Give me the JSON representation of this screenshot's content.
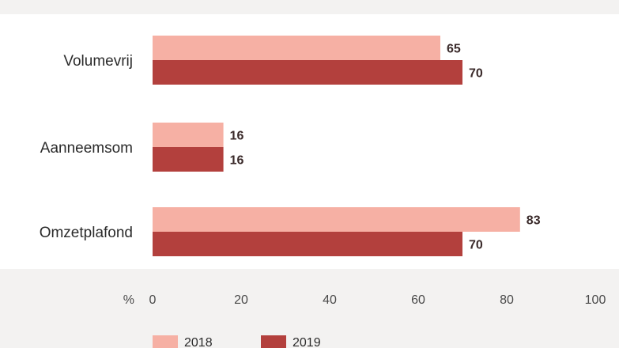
{
  "chart_data": {
    "type": "bar",
    "orientation": "horizontal",
    "categories": [
      "Volumevrij",
      "Aanneemsom",
      "Omzetplafond"
    ],
    "series": [
      {
        "name": "2018",
        "values": [
          65,
          16,
          83
        ],
        "color": "#f6b0a4"
      },
      {
        "name": "2019",
        "values": [
          70,
          16,
          70
        ],
        "color": "#b3403d"
      }
    ],
    "x_unit": "%",
    "xlim": [
      0,
      100
    ],
    "x_ticks": [
      0,
      20,
      40,
      60,
      80,
      100
    ],
    "grid": false,
    "legend_position": "bottom-center"
  },
  "colors": {
    "panel": "#ffffff",
    "page": "#f3f2f1"
  }
}
